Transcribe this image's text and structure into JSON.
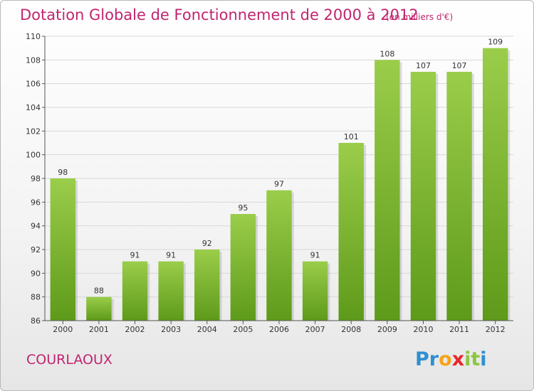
{
  "title": "Dotation Globale de Fonctionnement de 2000 à 2012",
  "subtitle": "(en milliers d'€)",
  "commune": "COURLAOUX",
  "logo": {
    "text": "Proxiti",
    "letters": [
      {
        "ch": "P",
        "color": "#2f8fd1"
      },
      {
        "ch": "r",
        "color": "#2f8fd1"
      },
      {
        "ch": "o",
        "color": "#f7a21b"
      },
      {
        "ch": "x",
        "color": "#e8262c"
      },
      {
        "ch": "i",
        "color": "#8cc63f"
      },
      {
        "ch": "t",
        "color": "#8cc63f"
      },
      {
        "ch": "i",
        "color": "#2f8fd1"
      }
    ]
  },
  "colors": {
    "title": "#c0256f",
    "bar_light": "#9acd4a",
    "bar_dark": "#5e9a1a",
    "grid": "#d8d8d8",
    "axis": "#555555"
  },
  "chart_data": {
    "type": "bar",
    "categories": [
      "2000",
      "2001",
      "2002",
      "2003",
      "2004",
      "2005",
      "2006",
      "2007",
      "2008",
      "2009",
      "2010",
      "2011",
      "2012"
    ],
    "values": [
      98,
      88,
      91,
      91,
      92,
      95,
      97,
      91,
      101,
      108,
      107,
      107,
      109
    ],
    "title": "Dotation Globale de Fonctionnement de 2000 à 2012",
    "ylim": [
      86,
      110
    ],
    "yticks": [
      86,
      88,
      90,
      92,
      94,
      96,
      98,
      100,
      102,
      104,
      106,
      108,
      110
    ],
    "grid": true
  }
}
